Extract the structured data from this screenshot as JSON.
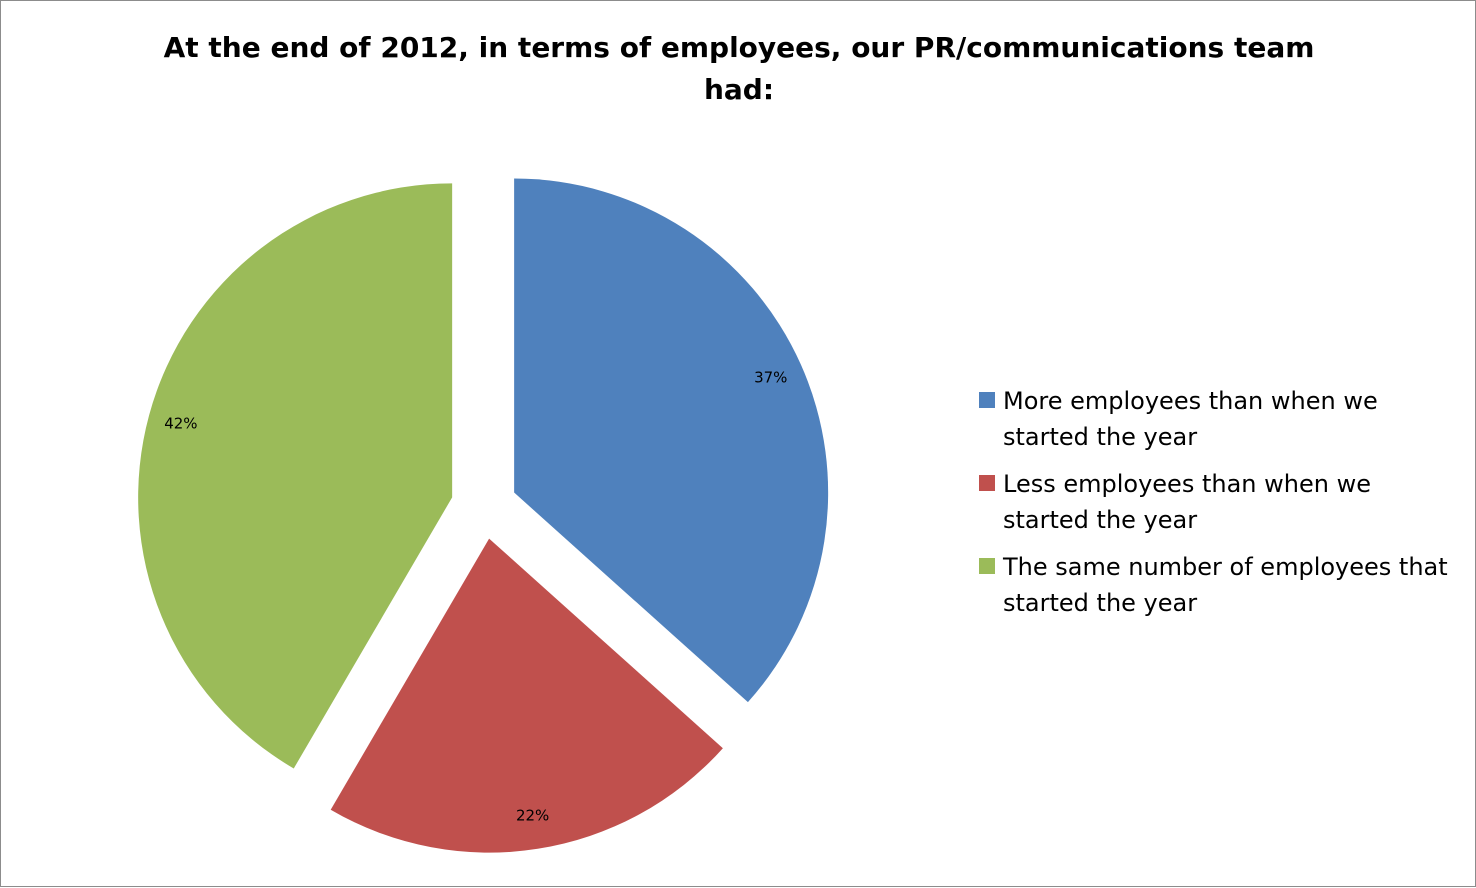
{
  "chart_data": {
    "type": "pie",
    "title": "At the end of 2012, in terms of employees, our PR/communications team had:",
    "categories": [
      "More employees than when we started the year",
      "Less employees than when we started the year",
      "The same number of employees that started the year"
    ],
    "values": [
      37,
      22,
      42
    ],
    "data_labels": [
      "37%",
      "22%",
      "42%"
    ],
    "colors": [
      "#4f81bd",
      "#c0504d",
      "#9bbb59"
    ],
    "exploded": true,
    "legend_position": "right"
  }
}
